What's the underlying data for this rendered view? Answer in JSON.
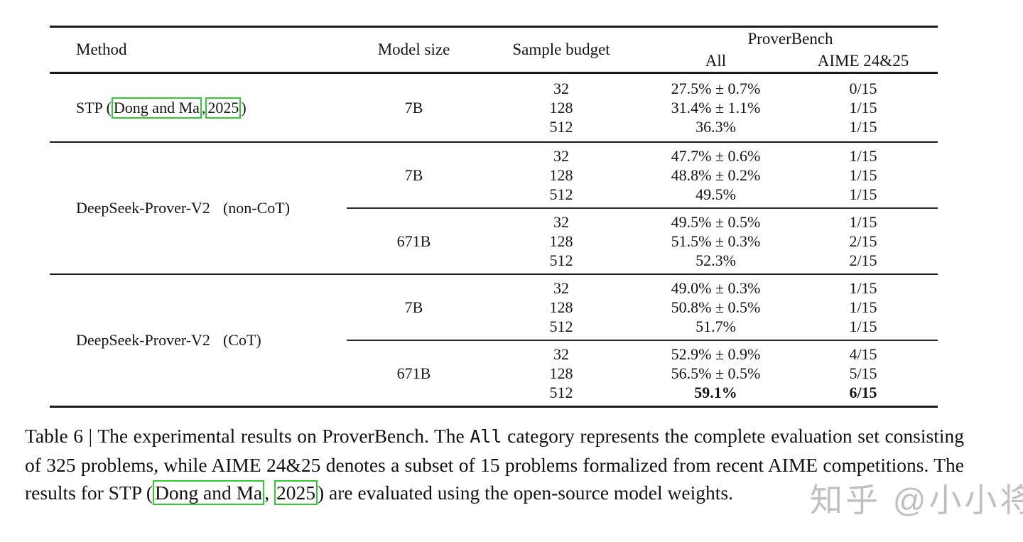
{
  "table": {
    "header": {
      "method": "Method",
      "model_size": "Model size",
      "sample_budget": "Sample budget",
      "group": "ProverBench",
      "col_all": "All",
      "col_aime": "AIME 24&25"
    },
    "sections": [
      {
        "method": {
          "prefix": "STP (",
          "cite_authors": "Dong and Ma",
          "separator": ", ",
          "cite_year": "2025",
          "suffix": ")"
        },
        "blocks": [
          {
            "model_size": "7B",
            "rows": [
              {
                "budget": "32",
                "all": "27.5% ± 0.7%",
                "aime": "0/15"
              },
              {
                "budget": "128",
                "all": "31.4% ± 1.1%",
                "aime": "1/15"
              },
              {
                "budget": "512",
                "all": "36.3%",
                "aime": "1/15"
              }
            ]
          }
        ]
      },
      {
        "method": {
          "name": "DeepSeek-Prover-V2",
          "variant": "(non-CoT)"
        },
        "blocks": [
          {
            "model_size": "7B",
            "rows": [
              {
                "budget": "32",
                "all": "47.7% ± 0.6%",
                "aime": "1/15"
              },
              {
                "budget": "128",
                "all": "48.8% ± 0.2%",
                "aime": "1/15"
              },
              {
                "budget": "512",
                "all": "49.5%",
                "aime": "1/15"
              }
            ]
          },
          {
            "model_size": "671B",
            "rows": [
              {
                "budget": "32",
                "all": "49.5% ± 0.5%",
                "aime": "1/15"
              },
              {
                "budget": "128",
                "all": "51.5% ± 0.3%",
                "aime": "2/15"
              },
              {
                "budget": "512",
                "all": "52.3%",
                "aime": "2/15"
              }
            ]
          }
        ]
      },
      {
        "method": {
          "name": "DeepSeek-Prover-V2",
          "variant": "(CoT)"
        },
        "blocks": [
          {
            "model_size": "7B",
            "rows": [
              {
                "budget": "32",
                "all": "49.0% ± 0.3%",
                "aime": "1/15"
              },
              {
                "budget": "128",
                "all": "50.8% ± 0.5%",
                "aime": "1/15"
              },
              {
                "budget": "512",
                "all": "51.7%",
                "aime": "1/15"
              }
            ]
          },
          {
            "model_size": "671B",
            "rows": [
              {
                "budget": "32",
                "all": "52.9% ± 0.9%",
                "aime": "4/15"
              },
              {
                "budget": "128",
                "all": "56.5% ± 0.5%",
                "aime": "5/15"
              },
              {
                "budget": "512",
                "all": "59.1%",
                "aime": "6/15"
              }
            ]
          }
        ]
      }
    ],
    "accent_citation_box_color": "#2fcb2f"
  },
  "caption": {
    "part1": "Table 6 | The experimental results on ProverBench. The ",
    "mono_all": "All",
    "part2": " category represents the complete evaluation set consisting of 325 problems, while AIME 24&25 denotes a subset of 15 problems formalized from recent AIME competitions.  The results for STP (",
    "cite_authors": "Dong and Ma",
    "part3": ", ",
    "cite_year": "2025",
    "part4": ") are evaluated using the open-source model weights."
  },
  "watermark": "知乎 @小小将"
}
